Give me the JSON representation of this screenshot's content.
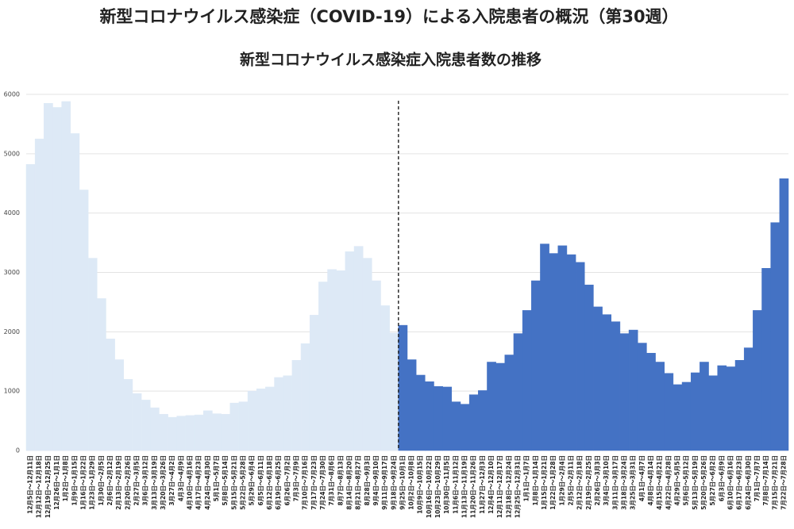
{
  "chart_data": {
    "type": "bar",
    "title": "新型コロナウイルス感染症（COVID-19）による入院患者の概況（第30週）",
    "subtitle": "新型コロナウイルス感染症入院患者数の推移",
    "categories": [
      "12月5日～12月11日",
      "12月12日～12月18日",
      "12月19日～12月25日",
      "12月26日～1月1日",
      "1月2日～1月8日",
      "1月9日～1月15日",
      "1月16日～1月22日",
      "1月23日～1月29日",
      "1月30日～2月5日",
      "2月6日～2月12日",
      "2月13日～2月19日",
      "2月20日～2月26日",
      "2月27日～3月5日",
      "3月6日～3月12日",
      "3月13日～3月19日",
      "3月20日～3月26日",
      "3月27日～4月2日",
      "4月3日～4月9日",
      "4月10日～4月16日",
      "4月17日～4月23日",
      "4月24日～4月30日",
      "5月1日～5月7日",
      "5月8日～5月14日",
      "5月15日～5月21日",
      "5月22日～5月28日",
      "5月29日～6月4日",
      "6月5日～6月11日",
      "6月12日～6月18日",
      "6月19日～6月25日",
      "6月26日～7月2日",
      "7月3日～7月9日",
      "7月10日～7月16日",
      "7月17日～7月23日",
      "7月24日～7月30日",
      "7月31日～8月6日",
      "8月7日～8月13日",
      "8月14日～8月20日",
      "8月21日～8月27日",
      "8月28日～9月3日",
      "9月4日～9月10日",
      "9月11日～9月17日",
      "9月18日～9月24日",
      "9月25日～10月1日",
      "10月2日～10月8日",
      "10月9日～10月15日",
      "10月16日～10月22日",
      "10月23日～10月29日",
      "10月30日～11月5日",
      "11月6日～11月12日",
      "11月13日～11月19日",
      "11月20日～11月26日",
      "11月27日～12月3日",
      "12月4日～12月10日",
      "12月11日～12月17日",
      "12月18日～12月24日",
      "12月25日～12月31日",
      "1月1日～1月7日",
      "1月8日～1月14日",
      "1月15日～1月21日",
      "1月22日～1月28日",
      "1月29日～2月4日",
      "2月5日～2月11日",
      "2月12日～2月18日",
      "2月19日～2月25日",
      "2月26日～3月3日",
      "3月4日～3月10日",
      "3月11日～3月17日",
      "3月18日～3月24日",
      "3月25日～3月31日",
      "4月1日～4月7日",
      "4月8日～4月14日",
      "4月15日～4月21日",
      "4月22日～4月28日",
      "4月29日～5月5日",
      "5月6日～5月12日",
      "5月13日～5月19日",
      "5月20日～5月26日",
      "5月27日～6月2日",
      "6月3日～6月9日",
      "6月10日～6月16日",
      "6月17日～6月23日",
      "6月24日～6月30日",
      "7月1日～7月7日",
      "7月8日～7月14日",
      "7月15日～7月21日",
      "7月22日～7月28日"
    ],
    "series": [
      {
        "color": "#dde9f6",
        "values": [
          4820,
          5250,
          5850,
          5780,
          5880,
          5340,
          4390,
          3240,
          2560,
          1880,
          1530,
          1200,
          960,
          850,
          720,
          610,
          560,
          580,
          590,
          600,
          670,
          620,
          610,
          800,
          820,
          1000,
          1040,
          1070,
          1230,
          1260,
          1520,
          1800,
          2280,
          2840,
          3050,
          3030,
          3350,
          3440,
          3240,
          2860,
          2440,
          1980,
          null,
          null,
          null,
          null,
          null,
          null,
          null,
          null,
          null,
          null,
          null,
          null,
          null,
          null,
          null,
          null,
          null,
          null,
          null,
          null,
          null,
          null,
          null,
          null,
          null,
          null,
          null,
          null,
          null,
          null,
          null,
          null,
          null,
          null,
          null,
          null,
          null,
          null,
          null,
          null,
          null,
          null,
          null,
          null
        ]
      },
      {
        "color": "#4472c4",
        "values": [
          null,
          null,
          null,
          null,
          null,
          null,
          null,
          null,
          null,
          null,
          null,
          null,
          null,
          null,
          null,
          null,
          null,
          null,
          null,
          null,
          null,
          null,
          null,
          null,
          null,
          null,
          null,
          null,
          null,
          null,
          null,
          null,
          null,
          null,
          null,
          null,
          null,
          null,
          null,
          null,
          null,
          null,
          2110,
          1530,
          1270,
          1160,
          1080,
          1070,
          820,
          780,
          940,
          1010,
          1490,
          1470,
          1610,
          1970,
          2360,
          2860,
          3480,
          3320,
          3450,
          3300,
          3170,
          2790,
          2420,
          2290,
          2170,
          1970,
          2030,
          1810,
          1640,
          1490,
          1300,
          1110,
          1150,
          1310,
          1490,
          1260,
          1430,
          1410,
          1520,
          1730,
          2360,
          3070,
          3840,
          4580
        ]
      }
    ],
    "ylim": [
      0,
      6000
    ],
    "yticks": [
      0,
      1000,
      2000,
      3000,
      4000,
      5000,
      6000
    ],
    "grid": true
  }
}
